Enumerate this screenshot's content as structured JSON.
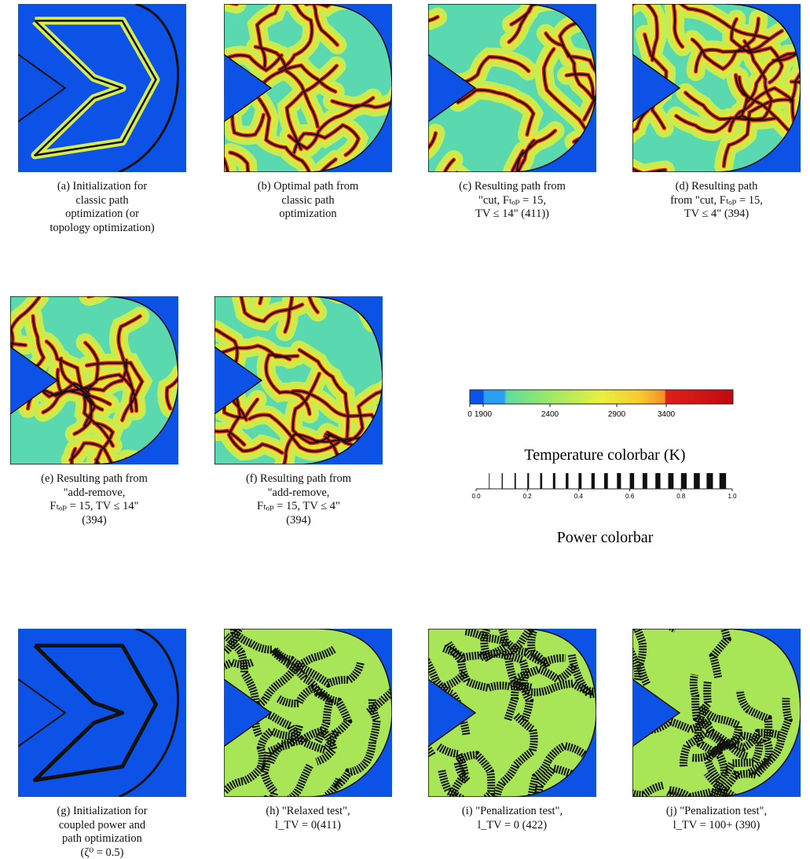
{
  "panels": [
    {
      "caption": [
        "(a) Initialization for",
        "classic path",
        "optimization (or",
        "topology optimization)"
      ]
    },
    {
      "caption": [
        "(b) Optimal path from",
        "classic path",
        "optimization"
      ]
    },
    {
      "caption": [
        "(c) Resulting path from",
        "\"cut, Fₜₒₚ = 15,",
        "TV ≤ 14\" (411))"
      ]
    },
    {
      "caption": [
        "(d) Resulting path",
        "from \"cut, Fₜₒₚ = 15,",
        "TV ≤ 4\" (394)"
      ]
    },
    {
      "caption": [
        "(e) Resulting path from",
        "\"add-remove,",
        "Fₜₒₚ = 15, TV ≤ 14\"",
        "(394)"
      ]
    },
    {
      "caption": [
        "(f) Resulting path from",
        "\"add-remove,",
        "Fₜₒₚ = 15, TV ≤ 4\"",
        "(394)"
      ]
    },
    {
      "caption": [
        "(g) Initialization for",
        "coupled power and",
        "path optimization",
        "(ζ⁰ = 0.5)"
      ]
    },
    {
      "caption": [
        "(h) \"Relaxed test\",",
        "l_TV = 0(411)"
      ]
    },
    {
      "caption": [
        "(i) \"Penalization test\",",
        "l_TV = 0 (422)"
      ]
    },
    {
      "caption": [
        "(j) \"Penalization test\",",
        "l_TV = 100+ (390)"
      ]
    }
  ],
  "temperature_colorbar": {
    "ticks": [
      "0",
      "1900",
      "2400",
      "2900",
      "3400"
    ],
    "label": "Temperature colorbar (K)"
  },
  "power_colorbar": {
    "ticks": [
      "0.0",
      "0.2",
      "0.4",
      "0.6",
      "0.8",
      "1.0"
    ],
    "label": "Power colorbar"
  }
}
